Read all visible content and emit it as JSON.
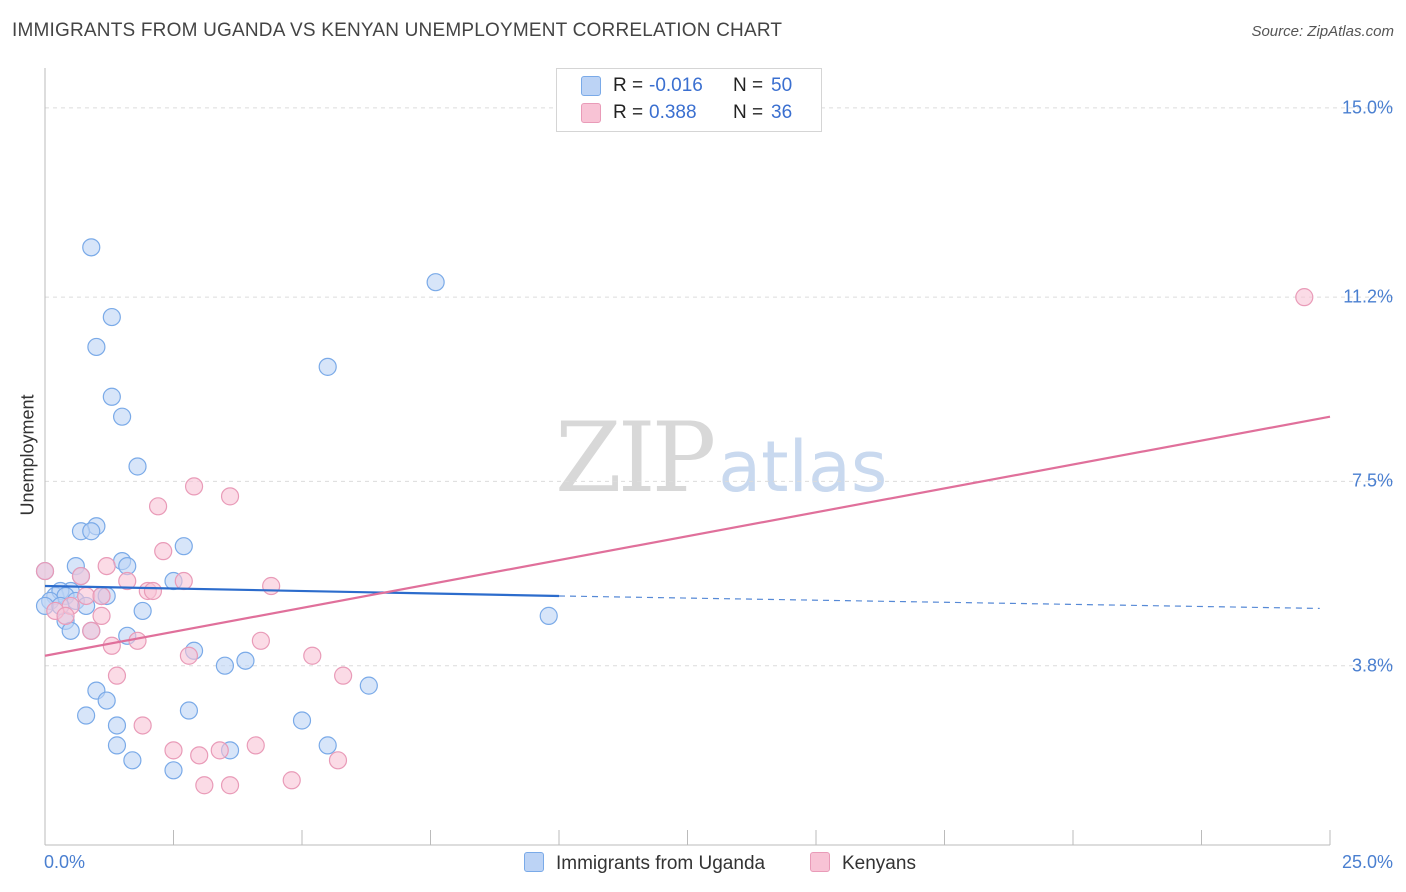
{
  "title": "IMMIGRANTS FROM UGANDA VS KENYAN UNEMPLOYMENT CORRELATION CHART",
  "source": "Source: ZipAtlas.com",
  "watermark": {
    "zip": "ZIP",
    "atlas": "atlas"
  },
  "stats": [
    {
      "swatch_color": "#bcd3f5",
      "r_label": "R =",
      "r_value": "-0.016",
      "n_label": "N =",
      "n_value": "50"
    },
    {
      "swatch_color": "#f8c3d5",
      "r_label": "R =",
      "r_value": "0.388",
      "n_label": "N =",
      "n_value": "36"
    }
  ],
  "legend": [
    {
      "label": "Immigrants from Uganda",
      "color": "#bcd3f5"
    },
    {
      "label": "Kenyans",
      "color": "#f8c3d5"
    }
  ],
  "chart_data": {
    "type": "scatter",
    "title": "IMMIGRANTS FROM UGANDA VS KENYAN UNEMPLOYMENT CORRELATION CHART",
    "xlabel": "",
    "ylabel": "Unemployment",
    "xlim": [
      0,
      25
    ],
    "ylim": [
      0.2,
      15.6
    ],
    "x_tick_labels": [
      "0.0%",
      "25.0%"
    ],
    "y_ticks": [
      {
        "value": 3.8,
        "label": "3.8%"
      },
      {
        "value": 7.5,
        "label": "7.5%"
      },
      {
        "value": 11.2,
        "label": "11.2%"
      },
      {
        "value": 15.0,
        "label": "15.0%"
      }
    ],
    "grid": "horizontal dashed",
    "series": [
      {
        "name": "Immigrants from Uganda",
        "color": "#7aaae8",
        "fill": "#bcd3f5",
        "trend": {
          "x0": 0,
          "y0": 5.4,
          "x1": 10,
          "y1": 5.2,
          "dash_to_x": 24.8,
          "dash_to_y": 4.95,
          "color": "#2c6ccc"
        },
        "points": [
          [
            0.9,
            12.2
          ],
          [
            7.6,
            11.5
          ],
          [
            1.3,
            10.8
          ],
          [
            1.0,
            10.2
          ],
          [
            5.5,
            9.8
          ],
          [
            1.3,
            9.2
          ],
          [
            1.5,
            8.8
          ],
          [
            1.8,
            7.8
          ],
          [
            1.0,
            6.6
          ],
          [
            0.7,
            6.5
          ],
          [
            0.9,
            6.5
          ],
          [
            2.7,
            6.2
          ],
          [
            1.5,
            5.9
          ],
          [
            1.6,
            5.8
          ],
          [
            0.6,
            5.8
          ],
          [
            0.0,
            5.7
          ],
          [
            0.7,
            5.6
          ],
          [
            2.5,
            5.5
          ],
          [
            0.5,
            5.3
          ],
          [
            0.2,
            5.2
          ],
          [
            0.3,
            5.3
          ],
          [
            0.4,
            5.2
          ],
          [
            1.1,
            5.2
          ],
          [
            1.2,
            5.2
          ],
          [
            0.6,
            5.1
          ],
          [
            0.1,
            5.1
          ],
          [
            0.0,
            5.0
          ],
          [
            1.9,
            4.9
          ],
          [
            9.8,
            4.8
          ],
          [
            0.4,
            4.7
          ],
          [
            0.5,
            4.5
          ],
          [
            0.9,
            4.5
          ],
          [
            1.6,
            4.4
          ],
          [
            2.9,
            4.1
          ],
          [
            3.9,
            3.9
          ],
          [
            3.5,
            3.8
          ],
          [
            6.3,
            3.4
          ],
          [
            1.0,
            3.3
          ],
          [
            1.2,
            3.1
          ],
          [
            2.8,
            2.9
          ],
          [
            0.8,
            2.8
          ],
          [
            5.0,
            2.7
          ],
          [
            1.4,
            2.6
          ],
          [
            1.4,
            2.2
          ],
          [
            5.5,
            2.2
          ],
          [
            3.6,
            2.1
          ],
          [
            1.7,
            1.9
          ],
          [
            2.5,
            1.7
          ],
          [
            0.3,
            5.0
          ],
          [
            0.8,
            5.0
          ]
        ]
      },
      {
        "name": "Kenyans",
        "color": "#e99bb8",
        "fill": "#f8c3d5",
        "trend": {
          "x0": 0,
          "y0": 4.0,
          "x1": 25,
          "y1": 8.8,
          "color": "#e0709b"
        },
        "points": [
          [
            24.5,
            11.2
          ],
          [
            2.9,
            7.4
          ],
          [
            3.6,
            7.2
          ],
          [
            2.2,
            7.0
          ],
          [
            2.3,
            6.1
          ],
          [
            0.0,
            5.7
          ],
          [
            1.2,
            5.8
          ],
          [
            1.6,
            5.5
          ],
          [
            2.7,
            5.5
          ],
          [
            0.7,
            5.6
          ],
          [
            4.4,
            5.4
          ],
          [
            2.0,
            5.3
          ],
          [
            2.1,
            5.3
          ],
          [
            0.8,
            5.2
          ],
          [
            1.1,
            5.2
          ],
          [
            0.5,
            5.0
          ],
          [
            0.2,
            4.9
          ],
          [
            1.1,
            4.8
          ],
          [
            0.4,
            4.8
          ],
          [
            0.9,
            4.5
          ],
          [
            1.8,
            4.3
          ],
          [
            4.2,
            4.3
          ],
          [
            1.3,
            4.2
          ],
          [
            5.2,
            4.0
          ],
          [
            2.8,
            4.0
          ],
          [
            1.4,
            3.6
          ],
          [
            5.8,
            3.6
          ],
          [
            1.9,
            2.6
          ],
          [
            2.5,
            2.1
          ],
          [
            4.1,
            2.2
          ],
          [
            3.4,
            2.1
          ],
          [
            3.0,
            2.0
          ],
          [
            5.7,
            1.9
          ],
          [
            3.1,
            1.4
          ],
          [
            3.6,
            1.4
          ],
          [
            4.8,
            1.5
          ]
        ]
      }
    ]
  }
}
